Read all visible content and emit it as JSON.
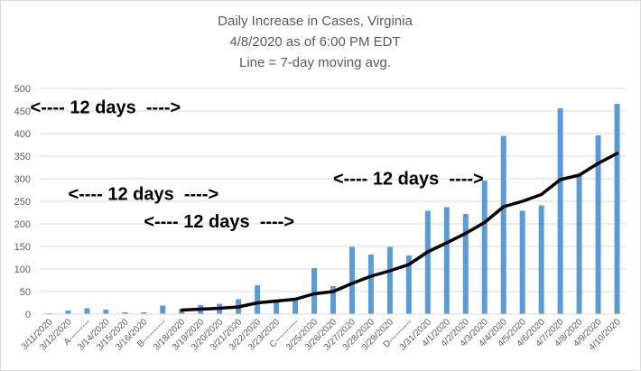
{
  "chart_data": {
    "type": "bar",
    "title": [
      "Daily Increase in Cases, Virginia",
      "4/8/2020 as of 6:00 PM EDT",
      "Line = 7-day moving avg."
    ],
    "xlabel": "",
    "ylabel": "",
    "ylim": [
      0,
      500
    ],
    "yticks": [
      0,
      50,
      100,
      150,
      200,
      250,
      300,
      350,
      400,
      450,
      500
    ],
    "grid": true,
    "legend": "none",
    "categories": [
      "3/11/2020",
      "3/12/2020",
      "A---------",
      "3/14/2020",
      "3/15/2020",
      "3/16/2020",
      "B----------",
      "3/18/2020",
      "3/19/2020",
      "3/20/2020",
      "3/21/2020",
      "3/22/2020",
      "3/23/2020",
      "C----------",
      "3/25/2020",
      "3/26/2020",
      "3/27/2020",
      "3/28/2020",
      "3/29/2020",
      "D----------",
      "3/31/2020",
      "4/1/2020",
      "4/2/2020",
      "4/3/2020",
      "4/4/2020",
      "4/5/2020",
      "4/6/2020",
      "4/7/2020",
      "4/8/2020",
      "4/9/2020",
      "4/10/2020"
    ],
    "series": [
      {
        "type": "bar",
        "color": "#5b9bd5",
        "values": [
          2,
          8,
          13,
          10,
          4,
          4,
          19,
          10,
          20,
          23,
          33,
          64,
          29,
          35,
          102,
          62,
          149,
          132,
          149,
          130,
          229,
          237,
          222,
          296,
          395,
          229,
          241,
          456,
          309,
          396,
          466
        ]
      },
      {
        "type": "line",
        "color": "#000000",
        "values": [
          null,
          null,
          null,
          null,
          null,
          null,
          null,
          9,
          11,
          13,
          16,
          25,
          29,
          33,
          45,
          50,
          68,
          84,
          96,
          110,
          138,
          158,
          179,
          203,
          238,
          250,
          265,
          298,
          308,
          334,
          356
        ]
      }
    ],
    "annotations": [
      {
        "text": "<---- 12 days  ---->",
        "x_start": "3/12/2020",
        "y": 267
      },
      {
        "text": "<---- 12 days  ---->",
        "x_start": "3/16/2020",
        "y": 206
      },
      {
        "text": "<---- 12 days  ---->",
        "x_start": "3/26/2020",
        "y": 301
      },
      {
        "text": "<---- 12 days  ---->",
        "x_start": "3/30/2020",
        "y": 459
      }
    ]
  }
}
